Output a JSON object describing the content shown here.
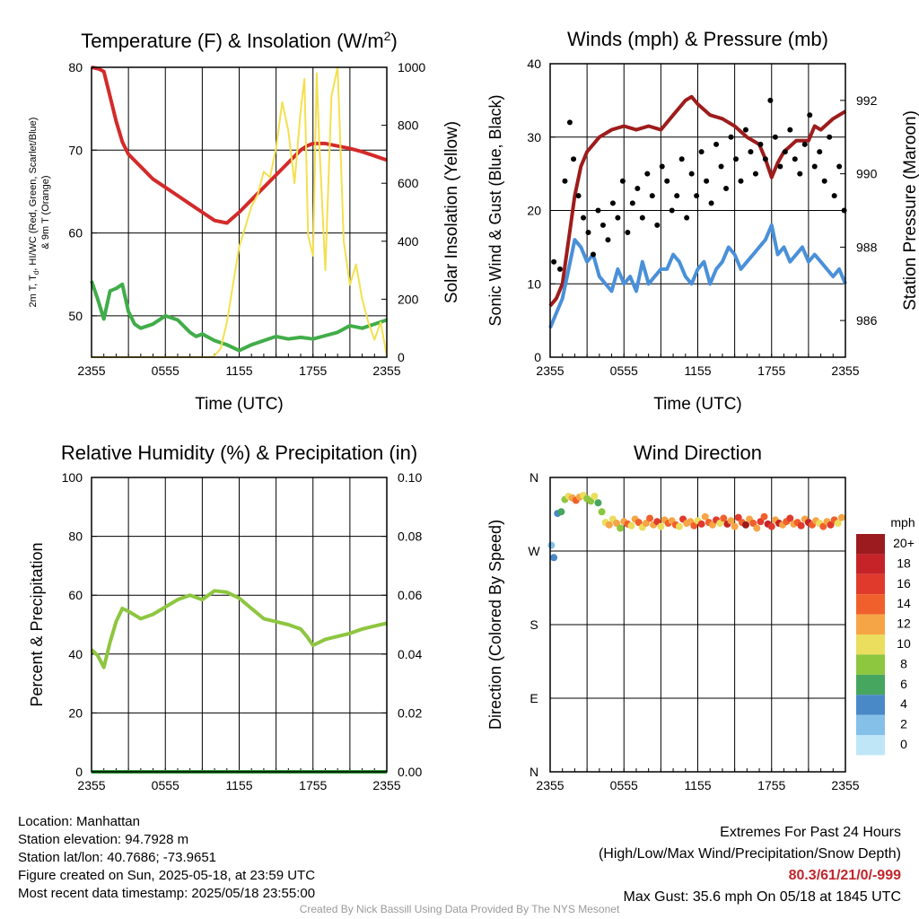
{
  "chart_data": [
    {
      "id": "temp",
      "type": "line",
      "title": "Temperature (F) & Insolation (W/m",
      "title_sup": "2",
      "title_close": ")",
      "xlabel": "Time (UTC)",
      "ylabel_left_lines": [
        "2m T, T",
        "d",
        ", HI/WC (Red, Green, Scarlet/Blue)",
        "& 9m T (Orange)"
      ],
      "ylabel_right": "Solar Insolation (Yellow)",
      "x_ticks": [
        "2355",
        "0555",
        "1155",
        "1755",
        "2355"
      ],
      "ylim_left": [
        45,
        80
      ],
      "yticks_left": [
        50,
        60,
        70,
        80
      ],
      "ylim_right": [
        0,
        1000
      ],
      "yticks_right": [
        0,
        200,
        400,
        600,
        800,
        1000
      ],
      "grid": true,
      "series": [
        {
          "color": "#d42a2a",
          "axis": "left",
          "x": [
            0,
            0.6,
            1.0,
            1.5,
            2.0,
            2.5,
            3.0,
            4.0,
            5.0,
            6.0,
            7.0,
            8.0,
            9.0,
            10.0,
            11.0,
            12.0,
            13.0,
            14.0,
            15.0,
            16.0,
            17.0,
            17.5,
            18.0,
            19.0,
            20.0,
            21.0,
            22.0,
            23.0,
            24.0
          ],
          "values": [
            80.0,
            79.8,
            79.5,
            76.5,
            73.5,
            71.0,
            69.5,
            68.0,
            66.5,
            65.5,
            64.5,
            63.5,
            62.5,
            61.5,
            61.2,
            62.5,
            64.0,
            65.5,
            67.0,
            68.5,
            70.0,
            70.5,
            70.8,
            70.8,
            70.5,
            70.2,
            69.8,
            69.3,
            68.8
          ]
        },
        {
          "color": "#41ad49",
          "axis": "left",
          "x": [
            0,
            0.5,
            1.0,
            1.5,
            2.0,
            2.5,
            3.0,
            3.5,
            4.0,
            5.0,
            6.0,
            7.0,
            8.0,
            8.5,
            9.0,
            10.0,
            11.0,
            12.0,
            13.0,
            14.0,
            15.0,
            16.0,
            17.0,
            18.0,
            19.0,
            20.0,
            21.0,
            22.0,
            23.0,
            24.0
          ],
          "values": [
            54.2,
            52.0,
            49.6,
            53.0,
            53.3,
            53.8,
            50.5,
            49.0,
            48.5,
            49.0,
            50.0,
            49.5,
            48.0,
            47.5,
            47.8,
            47.0,
            46.5,
            45.8,
            46.5,
            47.0,
            47.5,
            47.2,
            47.4,
            47.2,
            47.6,
            48.0,
            48.8,
            48.5,
            49.0,
            49.5
          ]
        },
        {
          "color": "#f4e04f",
          "axis": "right",
          "x": [
            0,
            1,
            2,
            3,
            4,
            5,
            6,
            7,
            8,
            9,
            9.7,
            10.0,
            10.5,
            11.0,
            11.5,
            12.0,
            12.5,
            13.0,
            13.5,
            14.0,
            14.5,
            15.0,
            15.5,
            16.0,
            16.5,
            17.0,
            17.3,
            17.6,
            18.0,
            18.3,
            18.5,
            19.0,
            19.5,
            20.0,
            20.5,
            21.0,
            21.5,
            22.0,
            22.5,
            23.0,
            23.5,
            24.0
          ],
          "values": [
            0,
            0,
            0,
            0,
            0,
            0,
            0,
            0,
            0,
            0,
            0,
            5,
            30,
            120,
            250,
            380,
            450,
            520,
            560,
            640,
            620,
            720,
            880,
            780,
            600,
            850,
            960,
            420,
            350,
            980,
            750,
            300,
            900,
            1000,
            400,
            250,
            320,
            200,
            120,
            60,
            120,
            5
          ]
        }
      ]
    },
    {
      "id": "winds",
      "type": "scatter",
      "title": "Winds (mph) & Pressure (mb)",
      "xlabel": "Time (UTC)",
      "ylabel_left": "Sonic Wind & Gust (Blue, Black)",
      "ylabel_right": "Station Pressure (Maroon)",
      "x_ticks": [
        "2355",
        "0555",
        "1155",
        "1755",
        "2355"
      ],
      "ylim_left": [
        0,
        40
      ],
      "yticks_left": [
        0,
        10,
        20,
        30,
        40
      ],
      "ylim_right": [
        985,
        993
      ],
      "yticks_right": [
        986,
        988,
        990,
        992
      ],
      "grid": true,
      "series": [
        {
          "color": "#9e1c1c",
          "axis": "right",
          "x": [
            0,
            0.5,
            1.0,
            1.5,
            2.0,
            2.5,
            3.0,
            4.0,
            5.0,
            6.0,
            7.0,
            8.0,
            9.0,
            10.0,
            11.0,
            11.5,
            12.0,
            13.0,
            14.0,
            15.0,
            16.0,
            17.0,
            17.5,
            18.0,
            18.5,
            19.0,
            20.0,
            21.0,
            21.5,
            22.0,
            23.0,
            24.0
          ],
          "values": [
            986.4,
            986.6,
            987.0,
            988.2,
            989.4,
            990.2,
            990.6,
            991.0,
            991.2,
            991.3,
            991.2,
            991.3,
            991.2,
            991.6,
            992.0,
            992.1,
            991.9,
            991.6,
            991.5,
            991.3,
            991.0,
            990.8,
            990.4,
            989.9,
            990.3,
            990.6,
            990.9,
            990.9,
            991.3,
            991.2,
            991.5,
            991.7
          ]
        },
        {
          "color": "#4a90d9",
          "axis": "left",
          "x": [
            0,
            0.5,
            1.0,
            1.5,
            2.0,
            2.5,
            3.0,
            3.5,
            4.0,
            4.5,
            5.0,
            5.5,
            6.0,
            6.5,
            7.0,
            7.5,
            8.0,
            8.5,
            9.0,
            9.5,
            10.0,
            10.5,
            11.0,
            11.5,
            12.0,
            12.5,
            13.0,
            13.5,
            14.0,
            14.5,
            15.0,
            15.5,
            16.0,
            16.5,
            17.0,
            17.5,
            18.0,
            18.5,
            19.0,
            19.5,
            20.0,
            20.5,
            21.0,
            21.5,
            22.0,
            22.5,
            23.0,
            23.5,
            24.0
          ],
          "values": [
            4,
            6,
            8,
            12,
            16,
            15,
            13,
            14,
            11,
            10,
            9,
            12,
            10,
            11,
            9,
            13,
            10,
            11,
            12,
            12,
            14,
            13,
            11,
            10,
            12,
            13,
            10,
            12,
            13,
            15,
            14,
            12,
            13,
            14,
            15,
            16,
            18,
            14,
            15,
            13,
            14,
            15,
            13,
            14,
            13,
            12,
            11,
            12,
            10
          ]
        },
        {
          "color": "#000000",
          "axis": "left",
          "mode": "points",
          "x": [
            0.3,
            0.8,
            1.2,
            1.6,
            1.9,
            2.3,
            2.7,
            3.1,
            3.5,
            3.9,
            4.3,
            4.7,
            5.1,
            5.5,
            5.9,
            6.3,
            6.7,
            7.1,
            7.5,
            7.9,
            8.3,
            8.7,
            9.1,
            9.5,
            9.9,
            10.3,
            10.7,
            11.1,
            11.5,
            11.9,
            12.3,
            12.7,
            13.1,
            13.5,
            13.9,
            14.3,
            14.7,
            15.1,
            15.5,
            15.9,
            16.3,
            16.7,
            17.1,
            17.5,
            17.9,
            18.3,
            18.7,
            19.1,
            19.5,
            19.9,
            20.3,
            20.7,
            21.1,
            21.5,
            21.9,
            22.3,
            22.7,
            23.1,
            23.5,
            23.9
          ],
          "values": [
            13,
            12,
            24,
            32,
            27,
            22,
            19,
            17,
            14,
            20,
            18,
            16,
            21,
            19,
            24,
            17,
            21,
            23,
            19,
            25,
            22,
            18,
            26,
            24,
            20,
            22,
            27,
            19,
            25,
            22,
            28,
            24,
            21,
            29,
            26,
            23,
            30,
            27,
            24,
            31,
            28,
            25,
            29,
            27,
            35,
            30,
            26,
            28,
            31,
            27,
            25,
            29,
            33,
            26,
            28,
            24,
            30,
            22,
            26,
            20
          ]
        }
      ]
    },
    {
      "id": "rh",
      "type": "line",
      "title": "Relative Humidity (%) & Precipitation (in)",
      "xlabel": "",
      "ylabel_left": "Percent & Precipitation",
      "x_ticks": [
        "2355",
        "0555",
        "1155",
        "1755",
        "2355"
      ],
      "ylim_left": [
        0,
        100
      ],
      "yticks_left": [
        0,
        20,
        40,
        60,
        80,
        100
      ],
      "ylim_right": [
        0,
        0.1
      ],
      "yticks_right": [
        "0.00",
        "0.02",
        "0.04",
        "0.06",
        "0.08",
        "0.10"
      ],
      "grid": true,
      "series": [
        {
          "color": "#8dc63f",
          "axis": "left",
          "x": [
            0,
            0.5,
            1.0,
            1.5,
            2.0,
            2.5,
            3.0,
            4.0,
            5.0,
            6.0,
            7.0,
            8.0,
            9.0,
            10.0,
            11.0,
            12.0,
            13.0,
            14.0,
            15.0,
            16.0,
            17.0,
            17.5,
            18.0,
            19.0,
            20.0,
            21.0,
            22.0,
            23.0,
            24.0
          ],
          "values": [
            41.5,
            39.5,
            35.5,
            44.0,
            51.0,
            55.5,
            54.5,
            52.0,
            53.5,
            56.0,
            58.5,
            60.0,
            58.5,
            61.5,
            61.0,
            59.0,
            55.5,
            52.0,
            51.0,
            50.0,
            48.5,
            46.0,
            43.0,
            45.0,
            46.0,
            47.0,
            48.5,
            49.5,
            50.5
          ]
        },
        {
          "color": "#2e9c3a",
          "axis": "left",
          "x": [
            0,
            24
          ],
          "values": [
            0,
            0
          ]
        }
      ]
    },
    {
      "id": "wdir",
      "type": "scatter",
      "title": "Wind Direction",
      "ylabel_left": "Direction (Colored By Speed)",
      "x_ticks": [
        "2355",
        "0555",
        "1155",
        "1755",
        "2355"
      ],
      "ylim_left": [
        0,
        360
      ],
      "yticks_left_labels": [
        "N",
        "E",
        "S",
        "W",
        "N"
      ],
      "grid": true,
      "colorbar": {
        "title": "mph",
        "labels": [
          "20+",
          "18",
          "16",
          "14",
          "12",
          "10",
          "8",
          "6",
          "4",
          "2",
          "0"
        ],
        "colors": [
          "#9b1b1e",
          "#c62329",
          "#e03a2c",
          "#f0602c",
          "#f6a546",
          "#ebdd5e",
          "#8dc63f",
          "#46a55e",
          "#4a89c8",
          "#84c0e8",
          "#bfe6f7"
        ]
      },
      "series": [
        {
          "name": "direction",
          "x": [
            0.1,
            0.3,
            0.6,
            0.9,
            1.2,
            1.5,
            1.8,
            2.1,
            2.4,
            2.7,
            3.0,
            3.3,
            3.6,
            3.9,
            4.2,
            4.5,
            4.8,
            5.1,
            5.4,
            5.7,
            6.0,
            6.3,
            6.6,
            6.9,
            7.2,
            7.5,
            7.8,
            8.1,
            8.4,
            8.7,
            9.0,
            9.3,
            9.6,
            9.9,
            10.2,
            10.5,
            10.8,
            11.1,
            11.4,
            11.7,
            12.0,
            12.3,
            12.6,
            12.9,
            13.2,
            13.5,
            13.8,
            14.1,
            14.4,
            14.7,
            15.0,
            15.3,
            15.6,
            15.9,
            16.2,
            16.5,
            16.8,
            17.1,
            17.4,
            17.7,
            18.0,
            18.3,
            18.6,
            18.9,
            19.2,
            19.5,
            19.8,
            20.1,
            20.4,
            20.7,
            21.0,
            21.3,
            21.6,
            21.9,
            22.2,
            22.5,
            22.8,
            23.1,
            23.4,
            23.7
          ],
          "values": [
            277,
            262,
            316,
            318,
            333,
            337,
            335,
            332,
            336,
            338,
            334,
            331,
            337,
            329,
            318,
            305,
            302,
            309,
            304,
            298,
            306,
            303,
            301,
            309,
            305,
            299,
            304,
            310,
            302,
            306,
            300,
            308,
            304,
            307,
            302,
            300,
            309,
            304,
            306,
            301,
            307,
            303,
            312,
            305,
            302,
            308,
            304,
            310,
            303,
            307,
            300,
            311,
            305,
            302,
            309,
            304,
            298,
            306,
            312,
            303,
            300,
            308,
            304,
            302,
            306,
            310,
            303,
            305,
            301,
            309,
            305,
            302,
            307,
            304,
            300,
            306,
            302,
            308,
            304,
            311
          ],
          "speeds": [
            3,
            5,
            4,
            6,
            8,
            10,
            12,
            14,
            12,
            10,
            9,
            8,
            11,
            7,
            9,
            10,
            12,
            11,
            13,
            9,
            12,
            14,
            10,
            12,
            15,
            11,
            13,
            14,
            12,
            16,
            10,
            13,
            15,
            12,
            14,
            11,
            16,
            13,
            12,
            15,
            10,
            17,
            13,
            14,
            12,
            16,
            11,
            15,
            18,
            13,
            12,
            16,
            14,
            20,
            13,
            15,
            12,
            17,
            14,
            19,
            16,
            13,
            18,
            12,
            14,
            17,
            13,
            15,
            16,
            12,
            18,
            14,
            13,
            11,
            15,
            12,
            16,
            14,
            10,
            13
          ]
        }
      ]
    }
  ],
  "info": {
    "location": "Location: Manhattan",
    "elevation": "Station elevation: 94.7928 m",
    "latlon": "Station lat/lon: 40.7686; -73.9651",
    "created": "Figure created on Sun, 2025-05-18, at 23:59 UTC",
    "recent": "Most recent data timestamp: 2025/05/18 23:55:00"
  },
  "extremes": {
    "title": "Extremes For Past 24 Hours",
    "subtitle": "(High/Low/Max Wind/Precipitation/Snow Depth)",
    "values": "80.3/61/21/0/-999",
    "max_gust": "Max Gust: 35.6 mph On 05/18 at 1845 UTC"
  },
  "credit": "Created By Nick Bassill Using Data Provided By The NYS Mesonet"
}
